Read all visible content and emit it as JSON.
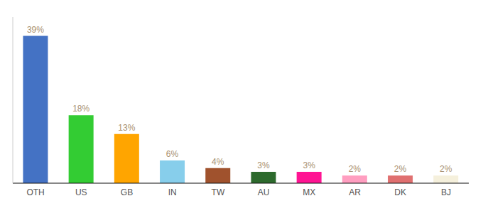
{
  "chart_data": {
    "type": "bar",
    "categories": [
      "OTH",
      "US",
      "GB",
      "IN",
      "TW",
      "AU",
      "MX",
      "AR",
      "DK",
      "BJ"
    ],
    "values": [
      39,
      18,
      13,
      6,
      4,
      3,
      3,
      2,
      2,
      2
    ],
    "value_labels": [
      "39%",
      "18%",
      "13%",
      "6%",
      "4%",
      "3%",
      "3%",
      "2%",
      "2%",
      "2%"
    ],
    "colors": [
      "#4472C4",
      "#33CC33",
      "#FFA500",
      "#87CEEB",
      "#A0522D",
      "#2D6A2D",
      "#FF1493",
      "#FF9EC0",
      "#E07070",
      "#F5F0DC"
    ],
    "ylim": [
      0,
      44
    ],
    "data_labels": true,
    "tick_labels": "x",
    "grid": false
  }
}
